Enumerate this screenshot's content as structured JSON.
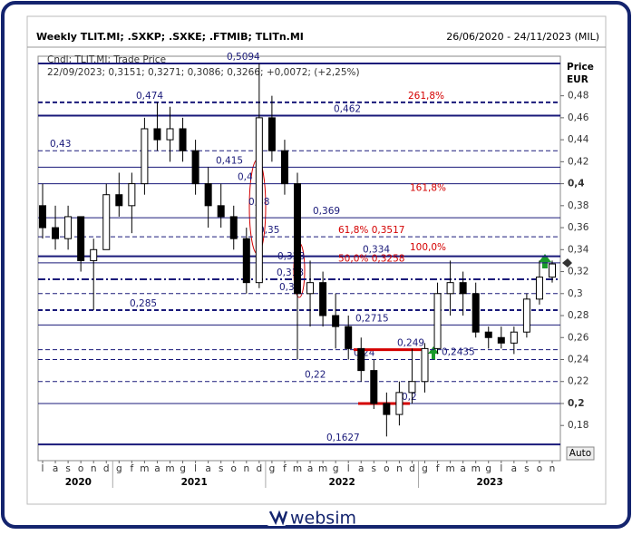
{
  "chart_data": {
    "type": "candlestick",
    "title": "Weekly TLIT.MI; .SXKP; .SXKE; .FTMIB; TLITn.MI",
    "date_range": "26/06/2020 - 24/11/2023 (MIL)",
    "legend_line1": "Cndl; TLIT.MI; Trade Price",
    "legend_line2": "22/09/2023; 0,3151; 0,3271; 0,3086; 0,3266; +0,0072; (+2,25%)",
    "axis_title": "Price",
    "axis_unit": "EUR",
    "scale_button": "Auto",
    "footer": "websim",
    "categories": [
      "l",
      "a",
      "s",
      "o",
      "n",
      "d",
      "g",
      "f",
      "m",
      "a",
      "m",
      "g",
      "l",
      "a",
      "s",
      "o",
      "n",
      "d",
      "g",
      "f",
      "m",
      "a",
      "m",
      "g",
      "l",
      "a",
      "s",
      "o",
      "n",
      "d",
      "g",
      "f",
      "m",
      "a",
      "m",
      "g",
      "l",
      "a",
      "s",
      "o",
      "n"
    ],
    "years": [
      "2020",
      "2021",
      "2022",
      "2023"
    ],
    "open": [
      0.38,
      0.36,
      0.35,
      0.37,
      0.33,
      0.34,
      0.39,
      0.38,
      0.4,
      0.45,
      0.44,
      0.45,
      0.43,
      0.4,
      0.38,
      0.37,
      0.35,
      0.31,
      0.46,
      0.43,
      0.4,
      0.3,
      0.31,
      0.28,
      0.27,
      0.25,
      0.23,
      0.2,
      0.19,
      0.21,
      0.22,
      0.25,
      0.3,
      0.31,
      0.3,
      0.265,
      0.26,
      0.255,
      0.265,
      0.295,
      0.315
    ],
    "high": [
      0.4,
      0.38,
      0.38,
      0.37,
      0.35,
      0.4,
      0.41,
      0.41,
      0.46,
      0.474,
      0.47,
      0.46,
      0.44,
      0.415,
      0.4,
      0.38,
      0.36,
      0.5094,
      0.48,
      0.44,
      0.41,
      0.33,
      0.32,
      0.3,
      0.28,
      0.26,
      0.24,
      0.21,
      0.22,
      0.25,
      0.255,
      0.31,
      0.33,
      0.32,
      0.31,
      0.27,
      0.27,
      0.27,
      0.3,
      0.33,
      0.33
    ],
    "low": [
      0.35,
      0.34,
      0.34,
      0.32,
      0.285,
      0.34,
      0.37,
      0.355,
      0.39,
      0.43,
      0.42,
      0.42,
      0.39,
      0.36,
      0.36,
      0.34,
      0.3,
      0.305,
      0.42,
      0.39,
      0.24,
      0.27,
      0.27,
      0.25,
      0.24,
      0.22,
      0.195,
      0.17,
      0.18,
      0.2,
      0.21,
      0.245,
      0.28,
      0.28,
      0.26,
      0.25,
      0.25,
      0.245,
      0.26,
      0.29,
      0.31
    ],
    "close": [
      0.36,
      0.35,
      0.37,
      0.33,
      0.34,
      0.39,
      0.38,
      0.4,
      0.45,
      0.44,
      0.45,
      0.43,
      0.4,
      0.38,
      0.37,
      0.35,
      0.31,
      0.46,
      0.43,
      0.4,
      0.3,
      0.31,
      0.28,
      0.27,
      0.25,
      0.23,
      0.2,
      0.19,
      0.21,
      0.22,
      0.25,
      0.3,
      0.31,
      0.3,
      0.265,
      0.26,
      0.255,
      0.265,
      0.295,
      0.315,
      0.327
    ],
    "levels": [
      {
        "value": 0.5094,
        "label": "0,5094",
        "style": "solid",
        "width": 2
      },
      {
        "value": 0.474,
        "label": "0,474",
        "style": "dashed",
        "width": 2
      },
      {
        "value": 0.462,
        "label": "0,462",
        "style": "solid",
        "width": 2
      },
      {
        "value": 0.43,
        "label": "0,43",
        "style": "dashed",
        "width": 1
      },
      {
        "value": 0.415,
        "label": "0,415",
        "style": "solid",
        "width": 1
      },
      {
        "value": 0.4,
        "label": "0,4",
        "style": "solid",
        "width": 1
      },
      {
        "value": 0.369,
        "label": "0,369",
        "style": "solid",
        "width": 1
      },
      {
        "value": 0.3517,
        "label": "0,35",
        "style": "dashed",
        "width": 1
      },
      {
        "value": 0.334,
        "label": "0,334",
        "style": "solid",
        "width": 2
      },
      {
        "value": 0.328,
        "label": "0,328",
        "style": "solid",
        "width": 1
      },
      {
        "value": 0.313,
        "label": "0,313",
        "style": "dashdot",
        "width": 2
      },
      {
        "value": 0.3,
        "label": "0,3",
        "style": "dashed",
        "width": 1
      },
      {
        "value": 0.285,
        "label": "0,285",
        "style": "dashed",
        "width": 2
      },
      {
        "value": 0.2715,
        "label": "0,2715",
        "style": "solid",
        "width": 1
      },
      {
        "value": 0.249,
        "label": "0,249",
        "style": "dashed",
        "width": 1
      },
      {
        "value": 0.24,
        "label": "0,24",
        "style": "dashed",
        "width": 1
      },
      {
        "value": 0.22,
        "label": "0,22",
        "style": "dashed",
        "width": 1
      },
      {
        "value": 0.2,
        "label": "0,2",
        "style": "solid",
        "width": 1
      },
      {
        "value": 0.1627,
        "label": "0,1627",
        "style": "solid",
        "width": 2
      }
    ],
    "fib_labels": [
      {
        "value": 0.474,
        "label": "261,8%"
      },
      {
        "value": 0.39,
        "label": "161,8%"
      },
      {
        "value": 0.3517,
        "label": "61,8%  0,3517"
      },
      {
        "value": 0.336,
        "label": "100,0%"
      },
      {
        "value": 0.3258,
        "label": "50,0%  0,3258"
      }
    ],
    "annotations": [
      {
        "value": 0.38,
        "label": "0,38"
      },
      {
        "value": 0.2435,
        "label": "0,2435"
      }
    ],
    "red_levels": [
      0.249,
      0.2
    ],
    "level_color": "#1a1a7a",
    "fib_color": "#d40000",
    "ylim": [
      0.148,
      0.516
    ],
    "yticks": [
      {
        "value": 0.48,
        "label": "0,48"
      },
      {
        "value": 0.46,
        "label": "0,46"
      },
      {
        "value": 0.44,
        "label": "0,44"
      },
      {
        "value": 0.42,
        "label": "0,42"
      },
      {
        "value": 0.4,
        "label": "0,4"
      },
      {
        "value": 0.38,
        "label": "0,38"
      },
      {
        "value": 0.36,
        "label": "0,36"
      },
      {
        "value": 0.34,
        "label": "0,34"
      },
      {
        "value": 0.32,
        "label": "0,32"
      },
      {
        "value": 0.3,
        "label": "0,3"
      },
      {
        "value": 0.28,
        "label": "0,28"
      },
      {
        "value": 0.26,
        "label": "0,26"
      },
      {
        "value": 0.24,
        "label": "0,24"
      },
      {
        "value": 0.22,
        "label": "0,22"
      },
      {
        "value": 0.2,
        "label": "0,2"
      },
      {
        "value": 0.18,
        "label": "0,18"
      }
    ]
  }
}
